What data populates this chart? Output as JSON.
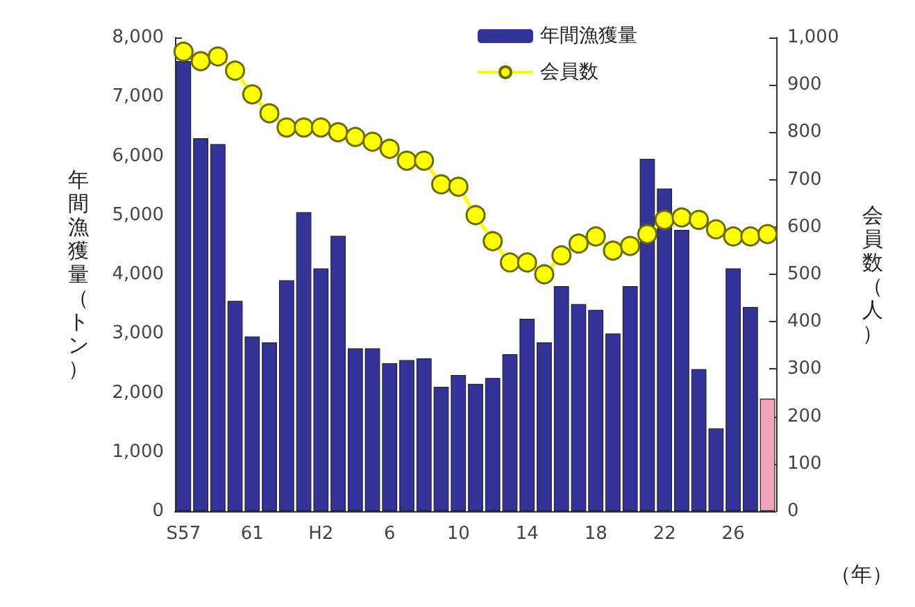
{
  "chart_data": {
    "type": "bar",
    "categories": [
      "S57",
      null,
      null,
      null,
      "61",
      null,
      null,
      null,
      "H2",
      null,
      null,
      null,
      "6",
      null,
      null,
      null,
      "10",
      null,
      null,
      null,
      "14",
      null,
      null,
      null,
      "18",
      null,
      null,
      null,
      "22",
      null,
      null,
      null,
      "26",
      null,
      null
    ],
    "series": [
      {
        "name": "年間漁獲量",
        "color": "#333399",
        "colors": [
          "#333399",
          "#333399",
          "#333399",
          "#333399",
          "#333399",
          "#333399",
          "#333399",
          "#333399",
          "#333399",
          "#333399",
          "#333399",
          "#333399",
          "#333399",
          "#333399",
          "#333399",
          "#333399",
          "#333399",
          "#333399",
          "#333399",
          "#333399",
          "#333399",
          "#333399",
          "#333399",
          "#333399",
          "#333399",
          "#333399",
          "#333399",
          "#333399",
          "#333399",
          "#333399",
          "#333399",
          "#333399",
          "#333399",
          "#333399",
          "#f4a3bd"
        ],
        "values": [
          7600,
          6300,
          6200,
          3550,
          2950,
          2850,
          3900,
          5050,
          4100,
          4650,
          2750,
          2750,
          2500,
          2550,
          2580,
          2100,
          2300,
          2150,
          2250,
          2650,
          3250,
          2850,
          3800,
          3500,
          3400,
          3000,
          3800,
          5950,
          5450,
          4750,
          2400,
          1400,
          4100,
          3450,
          1900
        ]
      },
      {
        "name": "会員数",
        "type": "line",
        "axis": "y2",
        "color": "#ffff00",
        "marker": "circle",
        "values": [
          970,
          950,
          960,
          930,
          880,
          840,
          810,
          810,
          810,
          800,
          790,
          780,
          765,
          740,
          740,
          690,
          685,
          625,
          570,
          525,
          525,
          500,
          540,
          565,
          580,
          550,
          560,
          585,
          615,
          620,
          615,
          595,
          580,
          580,
          585
        ]
      }
    ],
    "ylabel": "年間漁獲量（トン）",
    "y2label": "会員数（人）",
    "ylim": [
      0,
      8000
    ],
    "yticks": [
      0,
      {
        "value": 1000,
        "label": "1,000"
      },
      {
        "value": 2000,
        "label": "2,000"
      },
      {
        "value": 3000,
        "label": "3,000"
      },
      {
        "value": 4000,
        "label": "4,000"
      },
      {
        "value": 5000,
        "label": "5,000"
      },
      {
        "value": 6000,
        "label": "6,000"
      },
      {
        "value": 7000,
        "label": "7,000"
      },
      {
        "value": 8000,
        "label": "8,000"
      }
    ],
    "y2lim": [
      0,
      1000
    ],
    "y2ticks": [
      0,
      100,
      200,
      300,
      400,
      500,
      600,
      700,
      800,
      900,
      {
        "value": 1000,
        "label": "1,000"
      }
    ],
    "annotations": [
      "（年）"
    ],
    "legend": "top",
    "grid": false
  }
}
